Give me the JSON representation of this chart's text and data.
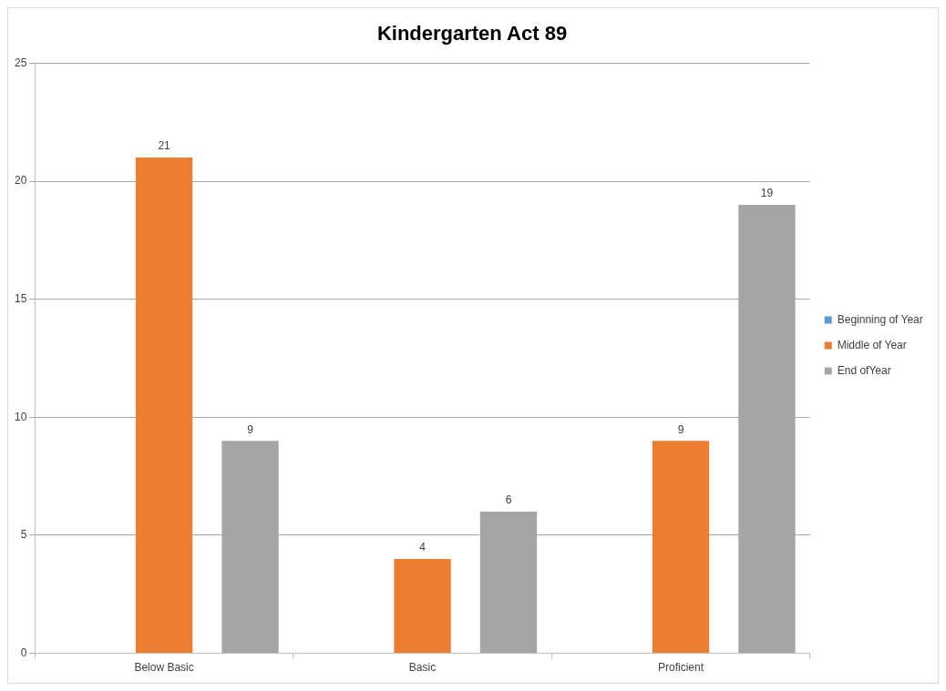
{
  "chart_data": {
    "type": "bar",
    "title": "Kindergarten Act 89",
    "categories": [
      "Below Basic",
      "Basic",
      "Proficient"
    ],
    "series": [
      {
        "name": "Beginning of Year",
        "color": "#5b9bd5",
        "values": [
          null,
          null,
          null
        ]
      },
      {
        "name": "Middle of Year",
        "color": "#ed7d31",
        "values": [
          21,
          4,
          9
        ]
      },
      {
        "name": "End ofYear",
        "color": "#a5a5a5",
        "values": [
          9,
          6,
          19
        ]
      }
    ],
    "ylim": [
      0,
      25
    ],
    "yticks": [
      0,
      5,
      10,
      15,
      20,
      25
    ],
    "grid": "y",
    "legend": "right",
    "data_labels": true
  }
}
